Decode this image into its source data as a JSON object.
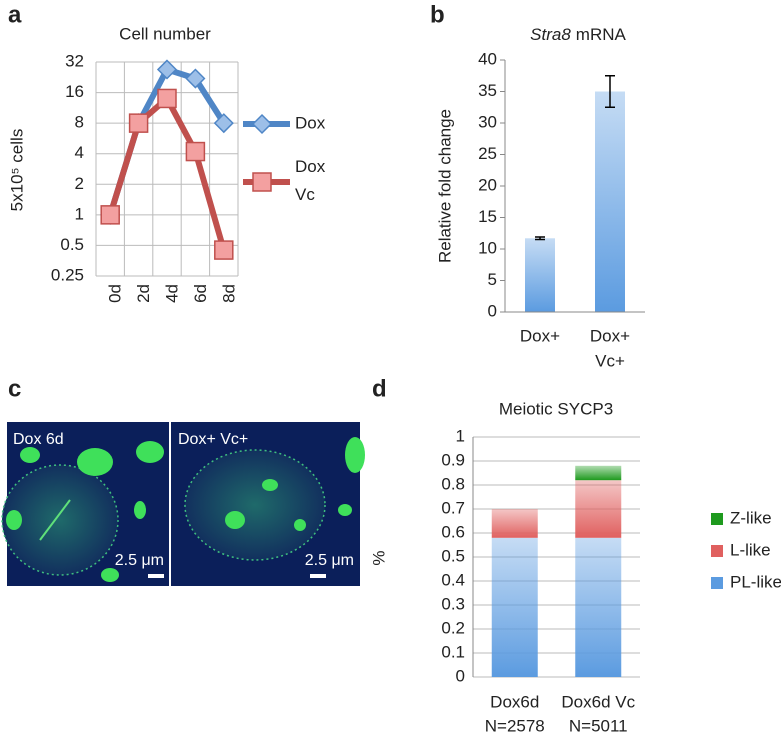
{
  "panel_labels": [
    "a",
    "b",
    "c",
    "d"
  ],
  "chart_data": [
    {
      "type": "line",
      "title": "Cell number",
      "ylabel": "5x10⁵ cells",
      "categories": [
        "0d",
        "2d",
        "4d",
        "6d",
        "8d"
      ],
      "series": [
        {
          "name": "Dox",
          "color": "#4f86c6",
          "marker": "diamond",
          "values": [
            1,
            8,
            27,
            22,
            8
          ]
        },
        {
          "name": "Dox Vc",
          "color": "#c0504d",
          "marker": "square",
          "values": [
            1,
            8,
            14,
            4.2,
            0.45
          ]
        }
      ],
      "log_scale": true,
      "ylim": [
        0.25,
        32
      ],
      "yticks": [
        0.25,
        0.5,
        1,
        2,
        4,
        8,
        16,
        32
      ],
      "grid": true
    },
    {
      "type": "bar",
      "title_parts": [
        {
          "text": "Stra8",
          "italic": true
        },
        {
          "text": "mRNA",
          "italic": false
        }
      ],
      "ylabel": "Relative fold change",
      "categories": [
        [
          "Dox+"
        ],
        [
          "Dox+",
          "Vc+"
        ]
      ],
      "values": [
        11.7,
        35
      ],
      "errors": [
        0.2,
        2.5
      ],
      "color": "#5b9be0",
      "ylim": [
        0,
        40
      ],
      "yticks": [
        0,
        5,
        10,
        15,
        20,
        25,
        30,
        35,
        40
      ],
      "grid": false
    },
    {
      "type": "stacked_bar",
      "title": "Meiotic SYCP3",
      "ylabel": "%",
      "categories": [
        [
          "Dox6d",
          "N=2578"
        ],
        [
          "Dox6d Vc",
          "N=5011"
        ]
      ],
      "series": [
        {
          "name": "PL-like",
          "color": "#5b9be0",
          "values": [
            0.58,
            0.58
          ]
        },
        {
          "name": "L-like",
          "color": "#e0605f",
          "values": [
            0.12,
            0.24
          ]
        },
        {
          "name": "Z-like",
          "color": "#1e9a1e",
          "values": [
            0,
            0.06
          ]
        }
      ],
      "ylim": [
        0,
        1
      ],
      "yticks": [
        0,
        0.1,
        0.2,
        0.3,
        0.4,
        0.5,
        0.6,
        0.7,
        0.8,
        0.9,
        1
      ],
      "grid": true,
      "legend": "right"
    }
  ],
  "images": [
    {
      "label": "Dox 6d",
      "scale": "2.5 μm"
    },
    {
      "label": "Dox+ Vc+",
      "scale": "2.5 μm"
    }
  ]
}
